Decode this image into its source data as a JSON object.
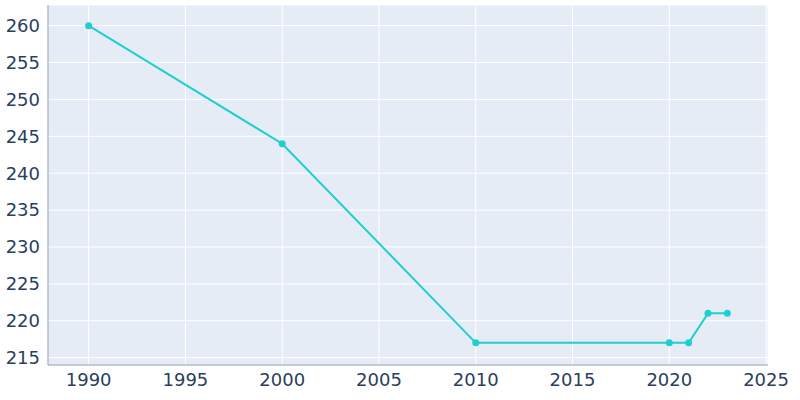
{
  "chart_data": {
    "type": "line",
    "x": [
      1990,
      2000,
      2010,
      2020,
      2021,
      2022,
      2023
    ],
    "values": [
      260,
      244,
      217,
      217,
      217,
      221,
      221
    ],
    "color": "#1fcfcf",
    "xlim": [
      1987.9,
      2025.1
    ],
    "ylim": [
      214,
      262.8
    ],
    "xticks": [
      1990,
      1995,
      2000,
      2005,
      2010,
      2015,
      2020,
      2025
    ],
    "yticks": [
      215,
      220,
      225,
      230,
      235,
      240,
      245,
      250,
      255,
      260
    ],
    "grid": true,
    "marker": "circle"
  }
}
